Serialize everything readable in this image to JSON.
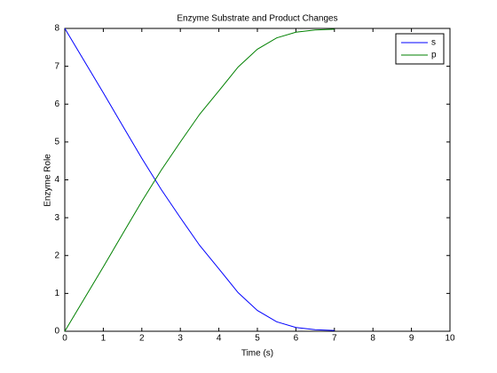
{
  "chart_data": {
    "type": "line",
    "title": "Enzyme Substrate and Product Changes",
    "x_label": "Time (s)",
    "y_label": "Enzyme Role",
    "x": [
      0,
      0.5,
      1,
      1.5,
      2,
      2.5,
      3,
      3.5,
      4,
      4.5,
      5,
      5.5,
      6,
      6.5,
      7
    ],
    "series": [
      {
        "name": "s",
        "color": "#0000ff",
        "values": [
          8,
          7.15,
          6.3,
          5.43,
          4.57,
          3.75,
          3.0,
          2.27,
          1.65,
          1.02,
          0.55,
          0.25,
          0.1,
          0.04,
          0.02
        ]
      },
      {
        "name": "p",
        "color": "#008000",
        "values": [
          0,
          0.85,
          1.7,
          2.57,
          3.43,
          4.25,
          5.0,
          5.73,
          6.35,
          6.98,
          7.45,
          7.75,
          7.9,
          7.96,
          7.98
        ]
      }
    ],
    "xlim": [
      0,
      10
    ],
    "xticks": [
      0,
      1,
      2,
      3,
      4,
      5,
      6,
      7,
      8,
      9,
      10
    ],
    "ylim": [
      0,
      8
    ],
    "yticks": [
      0,
      1,
      2,
      3,
      4,
      5,
      6,
      7,
      8
    ],
    "legend": "top-right"
  }
}
